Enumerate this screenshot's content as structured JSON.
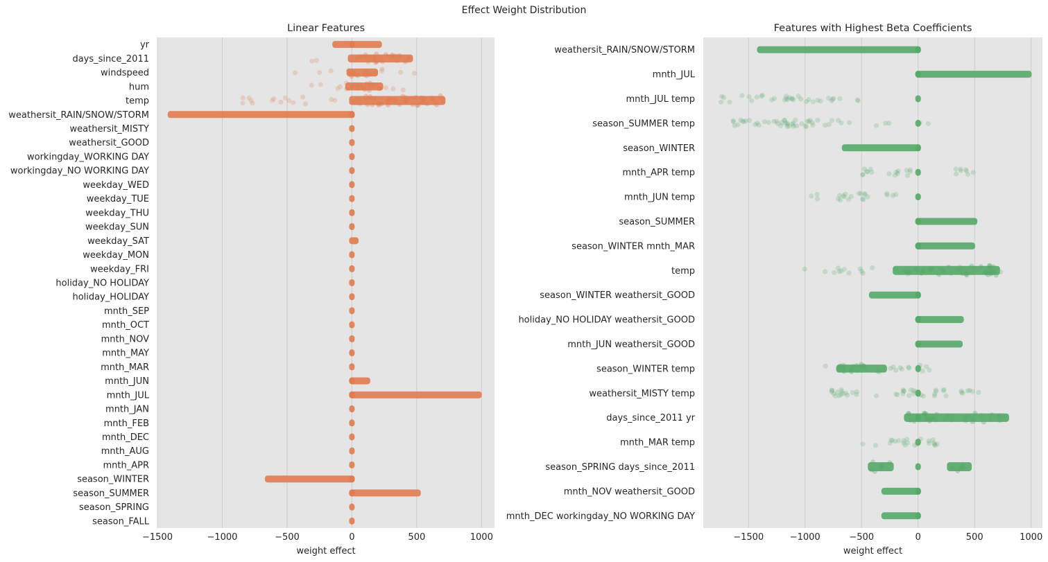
{
  "figure": {
    "suptitle": "Effect Weight Distribution"
  },
  "colors": {
    "background": "#e5e5e5",
    "grid": "#cccccc",
    "linear_points": "#e07b4f",
    "interaction_points": "#55a868"
  },
  "chart_data": [
    {
      "type": "scatter",
      "subtype": "strip",
      "title": "Linear Features",
      "xlabel": "weight effect",
      "ylabel": "",
      "xlim": [
        -1500,
        1100
      ],
      "xticks": [
        -1500,
        -1000,
        -500,
        0,
        500,
        1000
      ],
      "xtick_labels": [
        "−1500",
        "−1000",
        "−500",
        "0",
        "500",
        "1000"
      ],
      "grid": "vertical",
      "color": "#e07b4f",
      "categories": [
        {
          "name": "yr",
          "clusters": [
            [
              -130,
              0,
              0
            ],
            [
              210,
              0,
              0
            ]
          ]
        },
        {
          "name": "days_since_2011",
          "clusters": [
            [
              -10,
              450,
              1
            ]
          ],
          "scatter": [
            [
              -470,
              470,
              10
            ]
          ]
        },
        {
          "name": "windspeed",
          "clusters": [
            [
              -20,
              180,
              1
            ]
          ],
          "scatter": [
            [
              -460,
              580,
              12
            ]
          ]
        },
        {
          "name": "hum",
          "clusters": [
            [
              -30,
              220,
              1
            ]
          ],
          "scatter": [
            [
              -320,
              580,
              12
            ]
          ]
        },
        {
          "name": "temp",
          "clusters": [
            [
              0,
              700,
              2
            ]
          ],
          "scatter": [
            [
              -1020,
              840,
              25
            ]
          ]
        },
        {
          "name": "weathersit_RAIN/SNOW/STORM",
          "clusters": [
            [
              -1400,
              0,
              0
            ],
            [
              0,
              0,
              0
            ]
          ]
        },
        {
          "name": "weathersit_MISTY",
          "clusters": [
            [
              0,
              0,
              0
            ]
          ]
        },
        {
          "name": "weathersit_GOOD",
          "clusters": [
            [
              0,
              0,
              0
            ]
          ]
        },
        {
          "name": "workingday_WORKING DAY",
          "clusters": [
            [
              0,
              0,
              0
            ]
          ]
        },
        {
          "name": "workingday_NO WORKING DAY",
          "clusters": [
            [
              0,
              0,
              0
            ]
          ]
        },
        {
          "name": "weekday_WED",
          "clusters": [
            [
              0,
              0,
              0
            ]
          ]
        },
        {
          "name": "weekday_TUE",
          "clusters": [
            [
              0,
              0,
              0
            ]
          ]
        },
        {
          "name": "weekday_THU",
          "clusters": [
            [
              0,
              0,
              0
            ]
          ]
        },
        {
          "name": "weekday_SUN",
          "clusters": [
            [
              0,
              0,
              0
            ]
          ]
        },
        {
          "name": "weekday_SAT",
          "clusters": [
            [
              0,
              30,
              0
            ]
          ]
        },
        {
          "name": "weekday_MON",
          "clusters": [
            [
              0,
              0,
              0
            ]
          ]
        },
        {
          "name": "weekday_FRI",
          "clusters": [
            [
              0,
              0,
              0
            ]
          ]
        },
        {
          "name": "holiday_NO HOLIDAY",
          "clusters": [
            [
              0,
              0,
              0
            ]
          ]
        },
        {
          "name": "holiday_HOLIDAY",
          "clusters": [
            [
              0,
              0,
              0
            ]
          ]
        },
        {
          "name": "mnth_SEP",
          "clusters": [
            [
              0,
              0,
              0
            ]
          ]
        },
        {
          "name": "mnth_OCT",
          "clusters": [
            [
              0,
              0,
              0
            ]
          ]
        },
        {
          "name": "mnth_NOV",
          "clusters": [
            [
              0,
              0,
              0
            ]
          ]
        },
        {
          "name": "mnth_MAY",
          "clusters": [
            [
              0,
              0,
              0
            ]
          ]
        },
        {
          "name": "mnth_MAR",
          "clusters": [
            [
              0,
              0,
              0
            ]
          ]
        },
        {
          "name": "mnth_JUN",
          "clusters": [
            [
              0,
              0,
              0
            ],
            [
              120,
              0,
              0
            ]
          ]
        },
        {
          "name": "mnth_JUL",
          "clusters": [
            [
              0,
              0,
              0
            ],
            [
              980,
              0,
              0
            ]
          ]
        },
        {
          "name": "mnth_JAN",
          "clusters": [
            [
              0,
              0,
              0
            ]
          ]
        },
        {
          "name": "mnth_FEB",
          "clusters": [
            [
              0,
              0,
              0
            ]
          ]
        },
        {
          "name": "mnth_DEC",
          "clusters": [
            [
              0,
              0,
              0
            ]
          ]
        },
        {
          "name": "mnth_AUG",
          "clusters": [
            [
              0,
              0,
              0
            ]
          ]
        },
        {
          "name": "mnth_APR",
          "clusters": [
            [
              0,
              0,
              0
            ]
          ]
        },
        {
          "name": "season_WINTER",
          "clusters": [
            [
              -650,
              0,
              0
            ],
            [
              0,
              0,
              0
            ]
          ]
        },
        {
          "name": "season_SUMMER",
          "clusters": [
            [
              0,
              0,
              0
            ],
            [
              510,
              0,
              0
            ]
          ]
        },
        {
          "name": "season_SPRING",
          "clusters": [
            [
              0,
              0,
              0
            ]
          ]
        },
        {
          "name": "season_FALL",
          "clusters": [
            [
              0,
              0,
              0
            ]
          ]
        }
      ]
    },
    {
      "type": "scatter",
      "subtype": "strip",
      "title": "Features with Highest Beta Coefficients",
      "xlabel": "weight effect",
      "ylabel": "",
      "xlim": [
        -1900,
        1100
      ],
      "xticks": [
        -1500,
        -1000,
        -500,
        0,
        500,
        1000
      ],
      "xtick_labels": [
        "−1500",
        "−1000",
        "−500",
        "0",
        "500",
        "1000"
      ],
      "grid": "vertical",
      "color": "#55a868",
      "categories": [
        {
          "name": "weathersit_RAIN/SNOW/STORM",
          "clusters": [
            [
              -1400,
              0,
              0
            ],
            [
              0,
              0,
              0
            ]
          ]
        },
        {
          "name": "mnth_JUL",
          "clusters": [
            [
              0,
              0,
              0
            ],
            [
              980,
              0,
              0
            ]
          ]
        },
        {
          "name": "mnth_JUL temp",
          "clusters": [
            [
              0,
              0,
              0
            ]
          ],
          "scatter": [
            [
              -1800,
              -500,
              28
            ],
            [
              -1300,
              -1100,
              6
            ]
          ]
        },
        {
          "name": "season_SUMMER temp",
          "clusters": [
            [
              0,
              0,
              0
            ]
          ],
          "scatter": [
            [
              -1650,
              -600,
              32
            ],
            [
              -1300,
              -900,
              14
            ],
            [
              -450,
              -250,
              3
            ],
            [
              -50,
              120,
              2
            ]
          ]
        },
        {
          "name": "season_WINTER",
          "clusters": [
            [
              -650,
              0,
              0
            ],
            [
              0,
              0,
              0
            ]
          ]
        },
        {
          "name": "mnth_APR temp",
          "clusters": [
            [
              0,
              0,
              0
            ]
          ],
          "scatter": [
            [
              -560,
              -50,
              16
            ],
            [
              200,
              500,
              8
            ]
          ]
        },
        {
          "name": "mnth_JUN temp",
          "clusters": [
            [
              0,
              0,
              0
            ]
          ],
          "scatter": [
            [
              -950,
              -150,
              22
            ]
          ]
        },
        {
          "name": "season_SUMMER",
          "clusters": [
            [
              0,
              0,
              0
            ],
            [
              500,
              0,
              0
            ]
          ]
        },
        {
          "name": "season_WINTER mnth_MAR",
          "clusters": [
            [
              0,
              0,
              0
            ],
            [
              480,
              0,
              0
            ]
          ]
        },
        {
          "name": "temp",
          "clusters": [
            [
              -200,
              700,
              2
            ]
          ],
          "scatter": [
            [
              -1020,
              850,
              30
            ]
          ]
        },
        {
          "name": "season_WINTER weathersit_GOOD",
          "clusters": [
            [
              -410,
              0,
              0
            ],
            [
              0,
              0,
              0
            ]
          ]
        },
        {
          "name": "holiday_NO HOLIDAY weathersit_GOOD",
          "clusters": [
            [
              0,
              0,
              0
            ],
            [
              380,
              0,
              0
            ]
          ]
        },
        {
          "name": "mnth_JUN weathersit_GOOD",
          "clusters": [
            [
              0,
              0,
              0
            ],
            [
              370,
              0,
              0
            ]
          ]
        },
        {
          "name": "season_WINTER temp",
          "clusters": [
            [
              -700,
              -300,
              1
            ],
            [
              0,
              0,
              0
            ]
          ],
          "scatter": [
            [
              -900,
              130,
              18
            ]
          ]
        },
        {
          "name": "weathersit_MISTY temp",
          "clusters": [
            [
              0,
              0,
              0
            ]
          ],
          "scatter": [
            [
              -780,
              600,
              45
            ]
          ]
        },
        {
          "name": "days_since_2011 yr",
          "clusters": [
            [
              -100,
              780,
              1.5
            ],
            [
              0,
              0,
              0
            ]
          ]
        },
        {
          "name": "mnth_MAR temp",
          "clusters": [
            [
              0,
              0,
              0
            ]
          ],
          "scatter": [
            [
              -520,
              170,
              22
            ]
          ]
        },
        {
          "name": "season_SPRING days_since_2011",
          "clusters": [
            [
              -420,
              -240,
              2
            ],
            [
              0,
              0,
              0
            ],
            [
              280,
              450,
              2
            ]
          ]
        },
        {
          "name": "mnth_NOV weathersit_GOOD",
          "clusters": [
            [
              -300,
              0,
              0
            ],
            [
              0,
              0,
              0
            ]
          ]
        },
        {
          "name": "mnth_DEC workingday_NO WORKING DAY",
          "clusters": [
            [
              -300,
              0,
              0
            ],
            [
              0,
              0,
              0
            ]
          ]
        }
      ]
    }
  ]
}
